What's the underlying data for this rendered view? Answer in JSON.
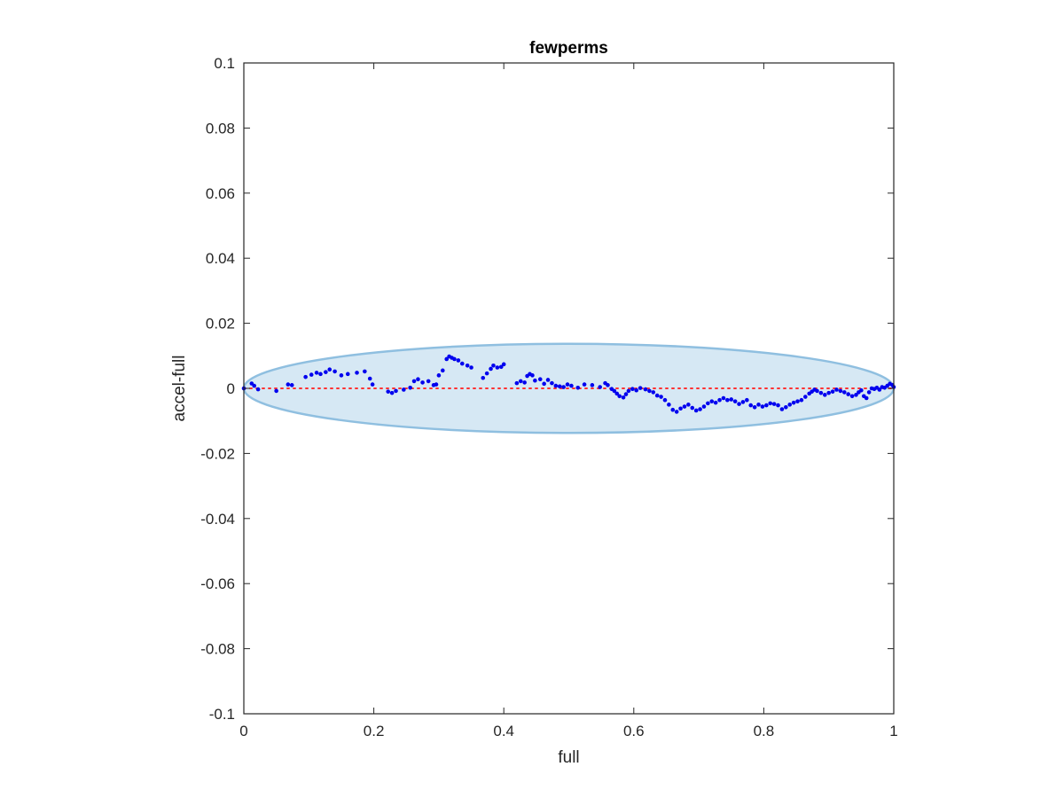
{
  "chart_data": {
    "type": "scatter",
    "title": "fewperms",
    "xlabel": "full",
    "ylabel": "accel-full",
    "xlim": [
      0,
      1
    ],
    "ylim": [
      -0.1,
      0.1
    ],
    "xticks": [
      0,
      0.2,
      0.4,
      0.6,
      0.8,
      1
    ],
    "xtick_labels": [
      "0",
      "0.2",
      "0.4",
      "0.6",
      "0.8",
      "1"
    ],
    "yticks": [
      -0.1,
      -0.08,
      -0.06,
      -0.04,
      -0.02,
      0,
      0.02,
      0.04,
      0.06,
      0.08,
      0.1
    ],
    "ytick_labels": [
      "-0.1",
      "-0.08",
      "-0.06",
      "-0.04",
      "-0.02",
      "0",
      "0.02",
      "0.04",
      "0.06",
      "0.08",
      "0.1"
    ],
    "grid": false,
    "box": true,
    "reference_line": {
      "y": 0,
      "style": "dotted",
      "color": "#ff3333"
    },
    "ellipse": {
      "center": [
        0.5,
        0
      ],
      "x_radius": 0.5,
      "y_radius": 0.0137,
      "fill": "#d6e8f4",
      "stroke": "#8fbfe0"
    },
    "point_color": "#0000ee",
    "points": [
      [
        0.0,
        0.0
      ],
      [
        0.012,
        0.0015
      ],
      [
        0.016,
        0.0008
      ],
      [
        0.022,
        -0.0003
      ],
      [
        0.05,
        -0.0008
      ],
      [
        0.068,
        0.0012
      ],
      [
        0.074,
        0.001
      ],
      [
        0.095,
        0.0035
      ],
      [
        0.104,
        0.0042
      ],
      [
        0.112,
        0.0048
      ],
      [
        0.118,
        0.0044
      ],
      [
        0.126,
        0.005
      ],
      [
        0.132,
        0.0058
      ],
      [
        0.14,
        0.0052
      ],
      [
        0.15,
        0.004
      ],
      [
        0.16,
        0.0044
      ],
      [
        0.174,
        0.0048
      ],
      [
        0.186,
        0.0052
      ],
      [
        0.194,
        0.003
      ],
      [
        0.198,
        0.0012
      ],
      [
        0.222,
        -0.001
      ],
      [
        0.228,
        -0.0014
      ],
      [
        0.234,
        -0.0008
      ],
      [
        0.246,
        -0.0004
      ],
      [
        0.256,
        0.0002
      ],
      [
        0.262,
        0.0022
      ],
      [
        0.268,
        0.0028
      ],
      [
        0.275,
        0.0018
      ],
      [
        0.284,
        0.0022
      ],
      [
        0.292,
        0.001
      ],
      [
        0.296,
        0.0012
      ],
      [
        0.3,
        0.004
      ],
      [
        0.306,
        0.0055
      ],
      [
        0.312,
        0.009
      ],
      [
        0.316,
        0.0098
      ],
      [
        0.32,
        0.0094
      ],
      [
        0.324,
        0.009
      ],
      [
        0.33,
        0.0086
      ],
      [
        0.336,
        0.0076
      ],
      [
        0.344,
        0.007
      ],
      [
        0.35,
        0.0064
      ],
      [
        0.368,
        0.0032
      ],
      [
        0.374,
        0.0046
      ],
      [
        0.38,
        0.006
      ],
      [
        0.384,
        0.007
      ],
      [
        0.39,
        0.0064
      ],
      [
        0.396,
        0.0066
      ],
      [
        0.4,
        0.0074
      ],
      [
        0.42,
        0.0016
      ],
      [
        0.426,
        0.0022
      ],
      [
        0.432,
        0.0018
      ],
      [
        0.436,
        0.0038
      ],
      [
        0.44,
        0.0044
      ],
      [
        0.444,
        0.004
      ],
      [
        0.448,
        0.0024
      ],
      [
        0.456,
        0.0028
      ],
      [
        0.462,
        0.0014
      ],
      [
        0.468,
        0.0026
      ],
      [
        0.474,
        0.0016
      ],
      [
        0.48,
        0.0008
      ],
      [
        0.486,
        0.0006
      ],
      [
        0.492,
        0.0004
      ],
      [
        0.498,
        0.0012
      ],
      [
        0.504,
        0.0008
      ],
      [
        0.514,
        0.0002
      ],
      [
        0.524,
        0.0012
      ],
      [
        0.536,
        0.001
      ],
      [
        0.548,
        0.0004
      ],
      [
        0.556,
        0.0016
      ],
      [
        0.56,
        0.001
      ],
      [
        0.566,
        -0.0002
      ],
      [
        0.57,
        -0.0008
      ],
      [
        0.574,
        -0.0016
      ],
      [
        0.578,
        -0.0024
      ],
      [
        0.584,
        -0.0028
      ],
      [
        0.588,
        -0.0018
      ],
      [
        0.592,
        -0.0008
      ],
      [
        0.598,
        -0.0002
      ],
      [
        0.604,
        -0.0006
      ],
      [
        0.61,
        0.0001
      ],
      [
        0.618,
        -0.0003
      ],
      [
        0.624,
        -0.0008
      ],
      [
        0.63,
        -0.0012
      ],
      [
        0.636,
        -0.0022
      ],
      [
        0.642,
        -0.0026
      ],
      [
        0.648,
        -0.0036
      ],
      [
        0.654,
        -0.005
      ],
      [
        0.66,
        -0.0066
      ],
      [
        0.666,
        -0.0072
      ],
      [
        0.672,
        -0.0062
      ],
      [
        0.678,
        -0.0056
      ],
      [
        0.684,
        -0.005
      ],
      [
        0.69,
        -0.006
      ],
      [
        0.696,
        -0.0068
      ],
      [
        0.702,
        -0.0064
      ],
      [
        0.708,
        -0.0056
      ],
      [
        0.714,
        -0.0046
      ],
      [
        0.72,
        -0.004
      ],
      [
        0.726,
        -0.0044
      ],
      [
        0.732,
        -0.0036
      ],
      [
        0.738,
        -0.003
      ],
      [
        0.744,
        -0.0036
      ],
      [
        0.75,
        -0.0034
      ],
      [
        0.756,
        -0.004
      ],
      [
        0.762,
        -0.0048
      ],
      [
        0.768,
        -0.0042
      ],
      [
        0.774,
        -0.0036
      ],
      [
        0.78,
        -0.0052
      ],
      [
        0.786,
        -0.0058
      ],
      [
        0.792,
        -0.005
      ],
      [
        0.798,
        -0.0056
      ],
      [
        0.804,
        -0.0052
      ],
      [
        0.81,
        -0.0046
      ],
      [
        0.816,
        -0.0048
      ],
      [
        0.822,
        -0.0052
      ],
      [
        0.828,
        -0.0064
      ],
      [
        0.834,
        -0.0058
      ],
      [
        0.84,
        -0.005
      ],
      [
        0.846,
        -0.0044
      ],
      [
        0.852,
        -0.004
      ],
      [
        0.858,
        -0.0036
      ],
      [
        0.864,
        -0.0026
      ],
      [
        0.87,
        -0.0016
      ],
      [
        0.874,
        -0.001
      ],
      [
        0.878,
        -0.0004
      ],
      [
        0.882,
        -0.0008
      ],
      [
        0.888,
        -0.0014
      ],
      [
        0.894,
        -0.002
      ],
      [
        0.9,
        -0.0014
      ],
      [
        0.906,
        -0.001
      ],
      [
        0.912,
        -0.0004
      ],
      [
        0.918,
        -0.0008
      ],
      [
        0.924,
        -0.0012
      ],
      [
        0.93,
        -0.0018
      ],
      [
        0.936,
        -0.0024
      ],
      [
        0.942,
        -0.002
      ],
      [
        0.946,
        -0.0012
      ],
      [
        0.95,
        -0.0006
      ],
      [
        0.954,
        -0.0024
      ],
      [
        0.958,
        -0.003
      ],
      [
        0.962,
        -0.0012
      ],
      [
        0.966,
        0.0
      ],
      [
        0.97,
        -0.0002
      ],
      [
        0.974,
        0.0002
      ],
      [
        0.978,
        -0.0004
      ],
      [
        0.982,
        0.0004
      ],
      [
        0.986,
        0.0002
      ],
      [
        0.99,
        0.0008
      ],
      [
        0.994,
        0.0014
      ],
      [
        0.998,
        0.001
      ],
      [
        1.0,
        0.0004
      ]
    ]
  }
}
